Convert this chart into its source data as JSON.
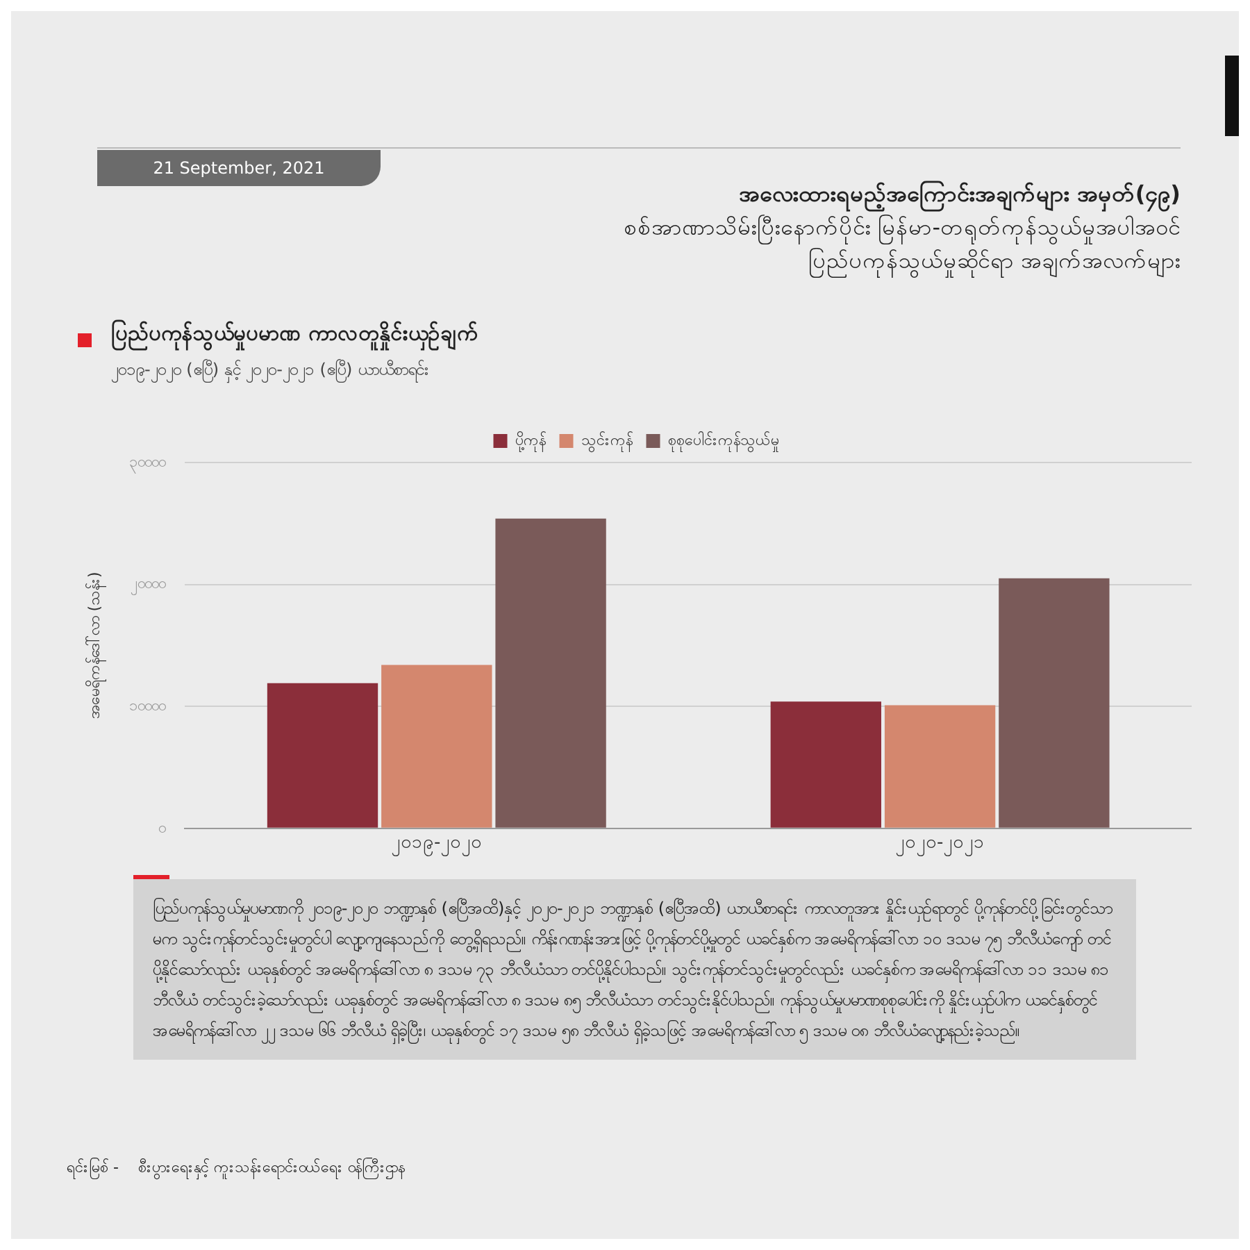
{
  "chart_data": {
    "type": "bar",
    "title": "ပြည်ပကုန်သွယ်မှုပမာဏ ကာလတူနှိုင်းယှဉ်ချက်",
    "subtitle": "၂၀၁၉-၂၀၂၀ (ဧပြီ) နှင့် ၂၀၂၀-၂၀၂၁ (ဧပြီ) ယာယီစာရင်း",
    "ylabel": "အမေရိကန်ဒေါ်လာ (သန်း)",
    "annotations": [
      "21 September, 2021",
      "အလေးထားရမည့်အကြောင်းအချက်များ အမှတ်(၄၉)",
      "စစ်အာဏာသိမ်းပြီးနောက်ပိုင်း မြန်မာ-တရုတ်ကုန်သွယ်မှုအပါအဝင်",
      "ပြည်ပကုန်သွယ်မှုဆိုင်ရာ အချက်အလက်များ",
      "ပြည်ပကုန်သွယ်မှုပမာဏကို ၂၀၁၉-၂၀၂၀ ဘဏ္ဍာနှစ် (ဧပြီအထိ)နှင့် ၂၀၂၀-၂၀၂၁ ဘဏ္ဍာနှစ် (ဧပြီအထိ) ယာယီစာရင်း ကာလတူအား နှိုင်းယှဉ်ရာတွင် ပို့ကုန်တင်ပို့ခြင်းတွင်သာမက သွင်းကုန်တင်သွင်းမှုတွင်ပါ လျော့ကျနေသည်ကို တွေ့ရှိရသည်။ ကိန်းဂဏန်းအားဖြင့် ပို့ကုန်တင်ပို့မှုတွင် ယခင်နှစ်က အမေရိကန်ဒေါ်လာ ၁၀ ဒသမ ၇၅ ဘီလီယံကျော် တင်ပို့နိုင်သော်လည်း ယခုနှစ်တွင် အမေရိကန်ဒေါ်လာ ၈ ဒသမ ၇၃ ဘီလီယံသာ တင်ပို့နိုင်ပါသည်။ သွင်းကုန်တင်သွင်းမှုတွင်လည်း ယခင်နှစ်က အမေရိကန်ဒေါ်လာ ၁၁ ဒသမ ၈၁ ဘီလီယံ တင်သွင်းခဲ့သော်လည်း ယခုနှစ်တွင် အမေရိကန်ဒေါ်လာ ၈ ဒသမ ၈၅ ဘီလီယံသာ တင်သွင်းနိုင်ပါသည်။ ကုန်သွယ်မှုပမာဏစုစုပေါင်းကို နှိုင်းယှဉ်ပါက ယခင်နှစ်တွင် အမေရိကန်ဒေါ်လာ ၂၂ ဒသမ ၆၆ ဘီလီယံ ရှိခဲ့ပြီး၊ ယခုနှစ်တွင် ၁၇ ဒသမ ၅၈ ဘီလီယံ ရှိခဲ့သဖြင့် အမေရိကန်ဒေါ်လာ ၅ ဒသမ ၀၈ ဘီလီယံလျော့နည်းခဲ့သည်။",
      "ရင်းမြစ် -    စီးပွားရေးနှင့် ကူးသန်းရောင်းဝယ်ရေး ဝန်ကြီးဌာန"
    ],
    "categories": [
      "၂၀၁၉-၂၀၂၀",
      "၂၀၂၀-၂၀၂၁"
    ],
    "series": [
      {
        "name": "ပို့ကုန်",
        "color": "#8b2e3a",
        "values": [
          11900,
          10400
        ]
      },
      {
        "name": "သွင်းကုန်",
        "color": "#d4876e",
        "values": [
          13400,
          10100
        ]
      },
      {
        "name": "စုစုပေါင်းကုန်သွယ်မှု",
        "color": "#7a5a59",
        "values": [
          25400,
          20500
        ]
      }
    ],
    "ylim": [
      0,
      30000
    ],
    "yticks": [
      {
        "value": 0,
        "label": "၀"
      },
      {
        "value": 10000,
        "label": "၁၀၀၀၀"
      },
      {
        "value": 20000,
        "label": "၂၀၀၀၀"
      },
      {
        "value": 30000,
        "label": "၃၀၀၀၀"
      }
    ],
    "grid": "y",
    "legend": "top"
  }
}
